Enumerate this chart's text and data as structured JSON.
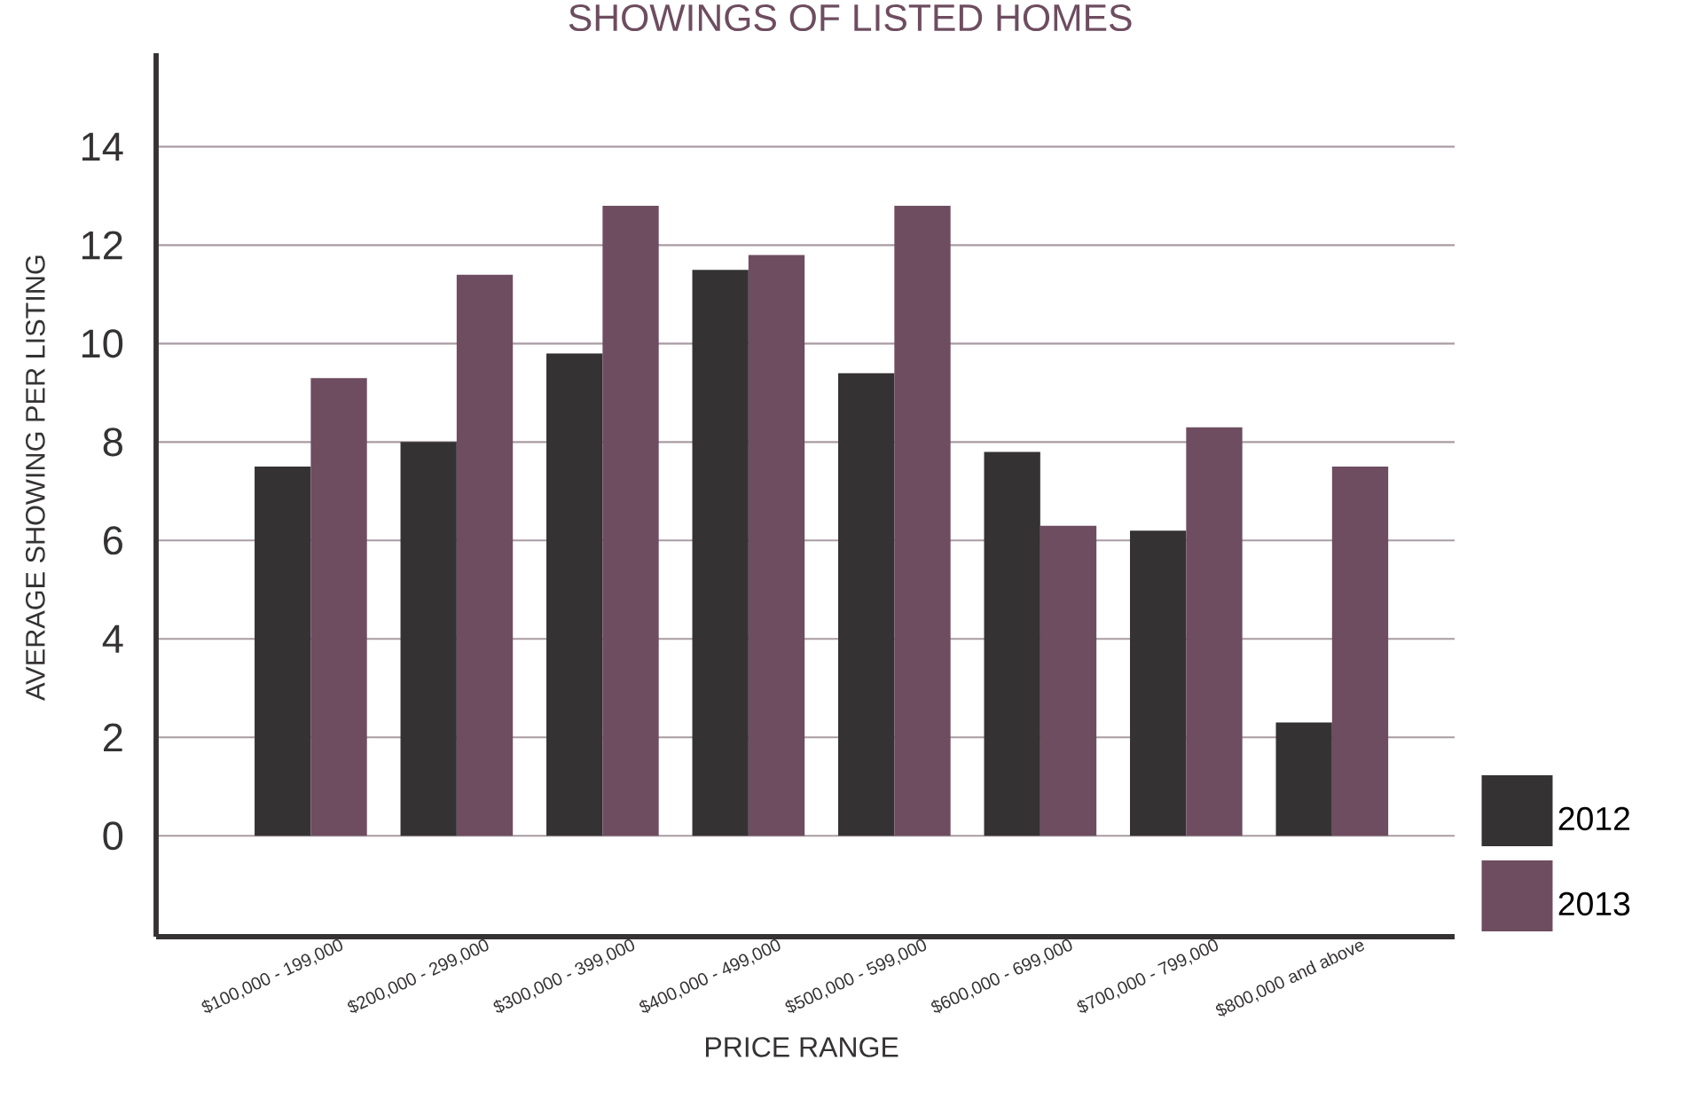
{
  "chart_data": {
    "type": "bar",
    "title": "SHOWINGS OF LISTED HOMES",
    "xlabel": "PRICE RANGE",
    "ylabel": "AVERAGE SHOWING PER LISTING",
    "categories": [
      "$100,000 - 199,000",
      "$200,000 - 299,000",
      "$300,000 - 399,000",
      "$400,000 - 499,000",
      "$500,000 - 599,000",
      "$600,000 - 699,000",
      "$700,000 - 799,000",
      "$800,000 and above"
    ],
    "series": [
      {
        "name": "2012",
        "color": "#353233",
        "values": [
          7.5,
          8.0,
          9.8,
          11.5,
          9.4,
          7.8,
          6.2,
          2.3
        ]
      },
      {
        "name": "2013",
        "color": "#6e4d60",
        "values": [
          9.3,
          11.4,
          12.8,
          11.8,
          12.8,
          6.3,
          8.3,
          7.5
        ]
      }
    ],
    "ylim": [
      -2.05,
      15.9
    ],
    "yticks": [
      0,
      2,
      4,
      6,
      8,
      10,
      12,
      14
    ],
    "grid": "y",
    "legend": "bottom right"
  }
}
